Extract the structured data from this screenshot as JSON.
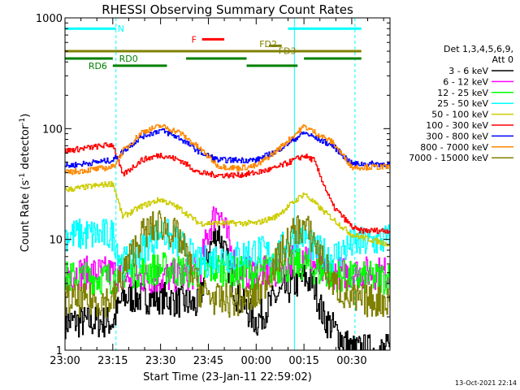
{
  "chart_data": {
    "type": "line",
    "title": "RHESSI Observing Summary Count Rates",
    "xlabel": "Start Time (23-Jan-11 22:59:02)",
    "ylabel_prefix": "Count Rate (s",
    "ylabel_mid": " detector",
    "ylabel_sup": "-1",
    "ylabel_suffix": ")",
    "yscale": "log",
    "ylim": [
      1,
      1000
    ],
    "xlim": [
      0,
      102
    ],
    "x_unit": "minutes after 23:00",
    "x_ticks": [
      {
        "t": 0,
        "label": "23:00"
      },
      {
        "t": 15,
        "label": "23:15"
      },
      {
        "t": 30,
        "label": "23:30"
      },
      {
        "t": 45,
        "label": "23:45"
      },
      {
        "t": 60,
        "label": "00:00"
      },
      {
        "t": 75,
        "label": "00:15"
      },
      {
        "t": 90,
        "label": "00:30"
      }
    ],
    "y_ticks": [
      {
        "v": 1,
        "label": "1"
      },
      {
        "v": 10,
        "label": "10"
      },
      {
        "v": 100,
        "label": "100"
      },
      {
        "v": 1000,
        "label": "1000"
      }
    ],
    "legend_header": [
      "Det 1,3,4,5,6,9,",
      "Att 0"
    ],
    "legend_position": "right",
    "series": [
      {
        "name": "3 - 6 keV",
        "color": "#000000",
        "points": [
          [
            0,
            1.8
          ],
          [
            15,
            1.8
          ],
          [
            18,
            3
          ],
          [
            30,
            3
          ],
          [
            42,
            2.5
          ],
          [
            45,
            8
          ],
          [
            48,
            12
          ],
          [
            51,
            6
          ],
          [
            54,
            3
          ],
          [
            60,
            1.8
          ],
          [
            66,
            3
          ],
          [
            75,
            4.5
          ],
          [
            78,
            4
          ],
          [
            81,
            2
          ],
          [
            90,
            1
          ],
          [
            102,
            1
          ]
        ]
      },
      {
        "name": "6 - 12 keV",
        "color": "#ff00ff",
        "points": [
          [
            0,
            5
          ],
          [
            15,
            5
          ],
          [
            18,
            4.5
          ],
          [
            30,
            4.5
          ],
          [
            42,
            5
          ],
          [
            45,
            12
          ],
          [
            48,
            20
          ],
          [
            51,
            10
          ],
          [
            54,
            5
          ],
          [
            60,
            5
          ],
          [
            66,
            5
          ],
          [
            75,
            8
          ],
          [
            78,
            6
          ],
          [
            81,
            5
          ],
          [
            90,
            5
          ],
          [
            102,
            5
          ]
        ]
      },
      {
        "name": "12 - 25 keV",
        "color": "#00ff00",
        "points": [
          [
            0,
            4.5
          ],
          [
            15,
            4.5
          ],
          [
            18,
            5
          ],
          [
            30,
            5.5
          ],
          [
            42,
            5
          ],
          [
            48,
            5.5
          ],
          [
            54,
            5
          ],
          [
            60,
            5
          ],
          [
            66,
            5.5
          ],
          [
            75,
            6
          ],
          [
            81,
            5
          ],
          [
            90,
            4.5
          ],
          [
            102,
            4.5
          ]
        ]
      },
      {
        "name": "25 - 50 keV",
        "color": "#00ffff",
        "points": [
          [
            0,
            11
          ],
          [
            15,
            11
          ],
          [
            18,
            6
          ],
          [
            24,
            8
          ],
          [
            30,
            12
          ],
          [
            36,
            9
          ],
          [
            42,
            6
          ],
          [
            48,
            7
          ],
          [
            54,
            7
          ],
          [
            60,
            8
          ],
          [
            66,
            7
          ],
          [
            72,
            11
          ],
          [
            75,
            11
          ],
          [
            78,
            8
          ],
          [
            84,
            7
          ],
          [
            90,
            9
          ],
          [
            102,
            10
          ]
        ]
      },
      {
        "name": "50 - 100 keV",
        "color": "#cccc00",
        "points": [
          [
            0,
            28
          ],
          [
            15,
            32
          ],
          [
            18,
            16
          ],
          [
            24,
            20
          ],
          [
            30,
            23
          ],
          [
            36,
            19
          ],
          [
            42,
            14
          ],
          [
            48,
            14
          ],
          [
            54,
            14
          ],
          [
            60,
            14
          ],
          [
            66,
            16
          ],
          [
            75,
            26
          ],
          [
            81,
            18
          ],
          [
            90,
            11
          ],
          [
            102,
            9
          ]
        ]
      },
      {
        "name": "100 - 300 keV",
        "color": "#ff0000",
        "points": [
          [
            0,
            63
          ],
          [
            15,
            72
          ],
          [
            18,
            38
          ],
          [
            24,
            52
          ],
          [
            30,
            58
          ],
          [
            36,
            52
          ],
          [
            42,
            40
          ],
          [
            48,
            38
          ],
          [
            54,
            38
          ],
          [
            60,
            40
          ],
          [
            66,
            44
          ],
          [
            75,
            57
          ],
          [
            78,
            52
          ],
          [
            84,
            20
          ],
          [
            90,
            13
          ],
          [
            92,
            12
          ]
        ]
      },
      {
        "name": "300 - 800 keV",
        "color": "#0000ff",
        "points": [
          [
            0,
            46
          ],
          [
            15,
            52
          ],
          [
            18,
            62
          ],
          [
            24,
            85
          ],
          [
            30,
            97
          ],
          [
            36,
            82
          ],
          [
            42,
            62
          ],
          [
            48,
            52
          ],
          [
            54,
            52
          ],
          [
            60,
            52
          ],
          [
            66,
            62
          ],
          [
            75,
            92
          ],
          [
            84,
            70
          ],
          [
            90,
            48
          ],
          [
            102,
            48
          ]
        ]
      },
      {
        "name": "800 - 7000 keV",
        "color": "#ff8800",
        "points": [
          [
            0,
            40
          ],
          [
            15,
            45
          ],
          [
            18,
            62
          ],
          [
            24,
            93
          ],
          [
            30,
            106
          ],
          [
            36,
            92
          ],
          [
            42,
            67
          ],
          [
            48,
            46
          ],
          [
            54,
            44
          ],
          [
            60,
            46
          ],
          [
            66,
            62
          ],
          [
            75,
            105
          ],
          [
            84,
            75
          ],
          [
            90,
            45
          ],
          [
            102,
            45
          ]
        ]
      },
      {
        "name": "7000 - 15000 keV",
        "color": "#808000",
        "points": [
          [
            0,
            2.8
          ],
          [
            15,
            2.8
          ],
          [
            18,
            5
          ],
          [
            24,
            11
          ],
          [
            30,
            14
          ],
          [
            36,
            10
          ],
          [
            42,
            3.5
          ],
          [
            48,
            2.8
          ],
          [
            54,
            2.8
          ],
          [
            60,
            3
          ],
          [
            66,
            6
          ],
          [
            72,
            12
          ],
          [
            75,
            13
          ],
          [
            78,
            10
          ],
          [
            84,
            4
          ],
          [
            90,
            2.8
          ],
          [
            102,
            2.8
          ]
        ]
      }
    ],
    "flag_bars": [
      {
        "label": "N",
        "color": "#00ffff",
        "segments": [
          [
            0,
            16
          ],
          [
            70,
            93
          ]
        ],
        "level": 800
      },
      {
        "label": "F",
        "color": "#ff0000",
        "segments": [
          [
            43,
            50
          ]
        ],
        "level": 640
      },
      {
        "label": "FD2",
        "color": "#808000",
        "segments": [
          [
            0,
            64
          ],
          [
            64,
            93
          ]
        ],
        "level": 500
      },
      {
        "label": "FD3",
        "color": "#808000",
        "segments": [
          [
            64,
            68
          ]
        ],
        "level": 560
      },
      {
        "label": "RD0",
        "color": "#008000",
        "segments": [
          [
            0,
            15
          ],
          [
            38,
            57
          ],
          [
            75,
            93
          ]
        ],
        "level": 430
      },
      {
        "label": "RD6",
        "color": "#008000",
        "segments": [
          [
            15,
            32
          ],
          [
            57,
            73
          ]
        ],
        "level": 370
      }
    ],
    "vertical_lines": [
      16,
      91
    ],
    "vertical_solid_lines": [
      0,
      72
    ]
  },
  "footer": {
    "timestamp": "13-Oct-2021 22:14"
  }
}
